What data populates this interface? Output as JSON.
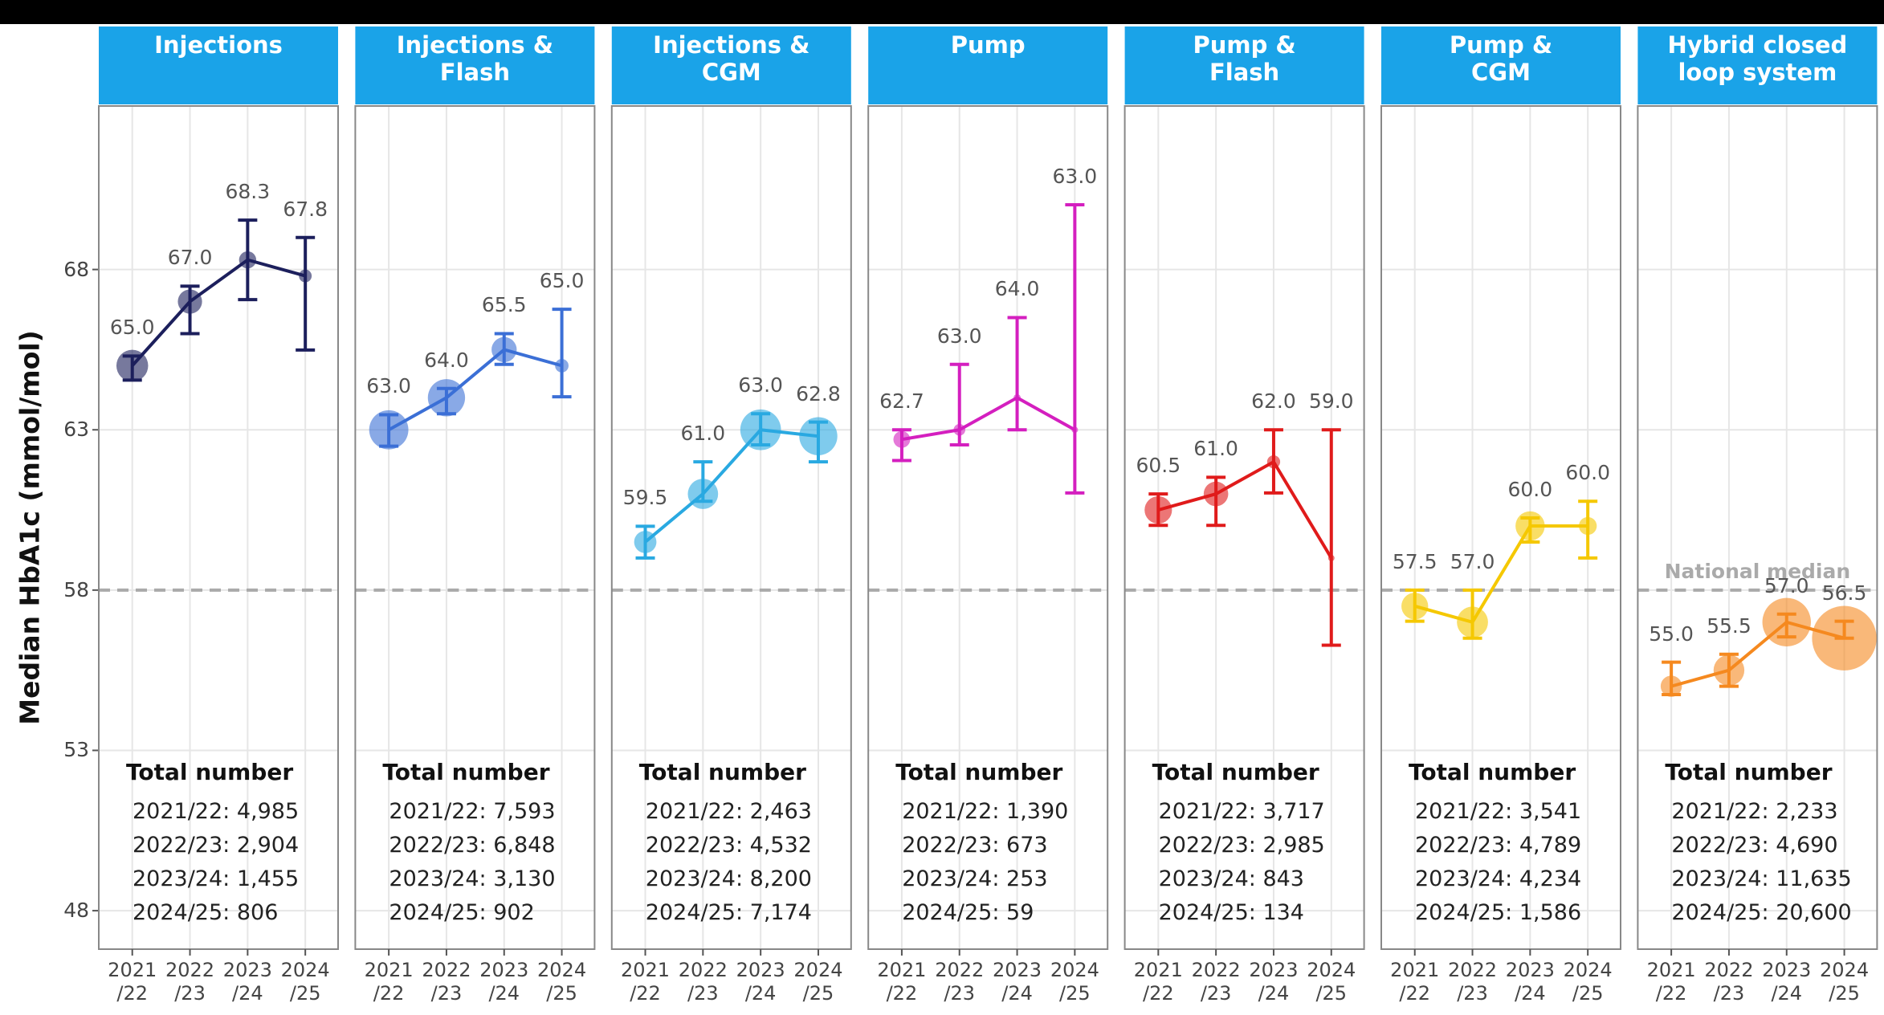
{
  "chart_data": [
    {
      "type": "line",
      "title": "Injections\n",
      "color": "#1c1f5c",
      "ylabel": "Median HbA1c (mmol/mol)",
      "categories": [
        "2021\n/22",
        "2022\n/23",
        "2023\n/24",
        "2024\n/25"
      ],
      "values": [
        65.0,
        67.0,
        68.3,
        67.8
      ],
      "value_labels": [
        "65.0",
        "67.0",
        "68.3",
        "67.8"
      ],
      "ci": [
        [
          64.55,
          65.3
        ],
        [
          66.0,
          67.48
        ],
        [
          67.06,
          69.54
        ],
        [
          65.49,
          69.0
        ]
      ],
      "totals_title": "Total number",
      "totals": [
        {
          "value": 4985,
          "label": "2021/22: 4,985"
        },
        {
          "value": 2904,
          "label": "2022/23: 2,904"
        },
        {
          "value": 1455,
          "label": "2023/24: 1,455"
        },
        {
          "value": 806,
          "label": "2024/25: 806"
        }
      ],
      "ylim": [
        46.8,
        73.1
      ],
      "yticks": [
        48,
        53,
        58,
        63,
        68
      ],
      "grid": true,
      "reference_line": {
        "value": 58
      }
    },
    {
      "type": "line",
      "title": "Injections &\nFlash",
      "color": "#3b6fd6",
      "categories": [
        "2021\n/22",
        "2022\n/23",
        "2023\n/24",
        "2024\n/25"
      ],
      "values": [
        63.0,
        64.0,
        65.5,
        65.0
      ],
      "value_labels": [
        "63.0",
        "64.0",
        "65.5",
        "65.0"
      ],
      "ci": [
        [
          62.49,
          63.47
        ],
        [
          63.5,
          64.29
        ],
        [
          65.04,
          66.0
        ],
        [
          64.03,
          66.76
        ]
      ],
      "totals_title": "Total number",
      "totals": [
        {
          "value": 7593,
          "label": "2021/22: 7,593"
        },
        {
          "value": 6848,
          "label": "2022/23: 6,848"
        },
        {
          "value": 3130,
          "label": "2023/24: 3,130"
        },
        {
          "value": 902,
          "label": "2024/25: 902"
        }
      ],
      "ylim": [
        46.8,
        73.1
      ],
      "yticks": [
        48,
        53,
        58,
        63,
        68
      ],
      "grid": true,
      "reference_line": {
        "value": 58
      }
    },
    {
      "type": "line",
      "title": "Injections &\nCGM",
      "color": "#29a9e1",
      "categories": [
        "2021\n/22",
        "2022\n/23",
        "2023\n/24",
        "2024\n/25"
      ],
      "values": [
        59.5,
        61.0,
        63.0,
        62.8
      ],
      "value_labels": [
        "59.5",
        "61.0",
        "63.0",
        "62.8"
      ],
      "ci": [
        [
          59.0,
          59.99
        ],
        [
          60.77,
          62.0
        ],
        [
          62.53,
          63.5
        ],
        [
          62.0,
          63.24
        ]
      ],
      "totals_title": "Total number",
      "totals": [
        {
          "value": 2463,
          "label": "2021/22: 2,463"
        },
        {
          "value": 4532,
          "label": "2022/23: 4,532"
        },
        {
          "value": 8200,
          "label": "2023/24: 8,200"
        },
        {
          "value": 7174,
          "label": "2024/25: 7,174"
        }
      ],
      "ylim": [
        46.8,
        73.1
      ],
      "yticks": [
        48,
        53,
        58,
        63,
        68
      ],
      "grid": true,
      "reference_line": {
        "value": 58
      }
    },
    {
      "type": "line",
      "title": "Pump\n",
      "color": "#d41fbf",
      "categories": [
        "2021\n/22",
        "2022\n/23",
        "2023\n/24",
        "2024\n/25"
      ],
      "values": [
        62.7,
        63.0,
        64.0,
        63.0
      ],
      "value_labels": [
        "62.7",
        "63.0",
        "64.0",
        "63.0"
      ],
      "ci": [
        [
          62.04,
          63.0
        ],
        [
          62.53,
          65.04
        ],
        [
          63.0,
          66.5
        ],
        [
          61.03,
          70.02
        ]
      ],
      "totals_title": "Total number",
      "totals": [
        {
          "value": 1390,
          "label": "2021/22: 1,390"
        },
        {
          "value": 673,
          "label": "2022/23: 673"
        },
        {
          "value": 253,
          "label": "2023/24: 253"
        },
        {
          "value": 59,
          "label": "2024/25: 59"
        }
      ],
      "ylim": [
        46.8,
        73.1
      ],
      "yticks": [
        48,
        53,
        58,
        63,
        68
      ],
      "grid": true,
      "reference_line": {
        "value": 58
      }
    },
    {
      "type": "line",
      "title": "Pump &\nFlash",
      "color": "#e01b1b",
      "categories": [
        "2021\n/22",
        "2022\n/23",
        "2023\n/24",
        "2024\n/25"
      ],
      "values": [
        60.5,
        61.0,
        62.0,
        59.0
      ],
      "value_labels": [
        "60.5",
        "61.0",
        "62.0",
        "59.0"
      ],
      "ci": [
        [
          60.02,
          61.0
        ],
        [
          60.02,
          61.52
        ],
        [
          61.03,
          63.0
        ],
        [
          56.28,
          63.0
        ]
      ],
      "totals_title": "Total number",
      "totals": [
        {
          "value": 3717,
          "label": "2021/22: 3,717"
        },
        {
          "value": 2985,
          "label": "2022/23: 2,985"
        },
        {
          "value": 843,
          "label": "2023/24: 843"
        },
        {
          "value": 134,
          "label": "2024/25: 134"
        }
      ],
      "ylim": [
        46.8,
        73.1
      ],
      "yticks": [
        48,
        53,
        58,
        63,
        68
      ],
      "grid": true,
      "reference_line": {
        "value": 58
      }
    },
    {
      "type": "line",
      "title": "Pump &\nCGM",
      "color": "#f5c800",
      "categories": [
        "2021\n/22",
        "2022\n/23",
        "2023\n/24",
        "2024\n/25"
      ],
      "values": [
        57.5,
        57.0,
        60.0,
        60.0
      ],
      "value_labels": [
        "57.5",
        "57.0",
        "60.0",
        "60.0"
      ],
      "ci": [
        [
          57.03,
          58.0
        ],
        [
          56.5,
          58.0
        ],
        [
          59.5,
          60.25
        ],
        [
          59.0,
          60.77
        ]
      ],
      "totals_title": "Total number",
      "totals": [
        {
          "value": 3541,
          "label": "2021/22: 3,541"
        },
        {
          "value": 4789,
          "label": "2022/23: 4,789"
        },
        {
          "value": 4234,
          "label": "2023/24: 4,234"
        },
        {
          "value": 1586,
          "label": "2024/25: 1,586"
        }
      ],
      "ylim": [
        46.8,
        73.1
      ],
      "yticks": [
        48,
        53,
        58,
        63,
        68
      ],
      "grid": true,
      "reference_line": {
        "value": 58
      }
    },
    {
      "type": "line",
      "title": "Hybrid closed\nloop system",
      "color": "#f5891f",
      "categories": [
        "2021\n/22",
        "2022\n/23",
        "2023\n/24",
        "2024\n/25"
      ],
      "values": [
        55.0,
        55.5,
        57.0,
        56.5
      ],
      "value_labels": [
        "55.0",
        "55.5",
        "57.0",
        "56.5"
      ],
      "ci": [
        [
          54.74,
          55.75
        ],
        [
          55.0,
          56.0
        ],
        [
          56.54,
          57.25
        ],
        [
          56.5,
          57.03
        ]
      ],
      "totals_title": "Total number",
      "totals": [
        {
          "value": 2233,
          "label": "2021/22: 2,233"
        },
        {
          "value": 4690,
          "label": "2022/23: 4,690"
        },
        {
          "value": 11635,
          "label": "2023/24: 11,635"
        },
        {
          "value": 20600,
          "label": "2024/25: 20,600"
        }
      ],
      "ylim": [
        46.8,
        73.1
      ],
      "yticks": [
        48,
        53,
        58,
        63,
        68
      ],
      "grid": true,
      "reference_line": {
        "value": 58,
        "label": "National median"
      }
    }
  ]
}
